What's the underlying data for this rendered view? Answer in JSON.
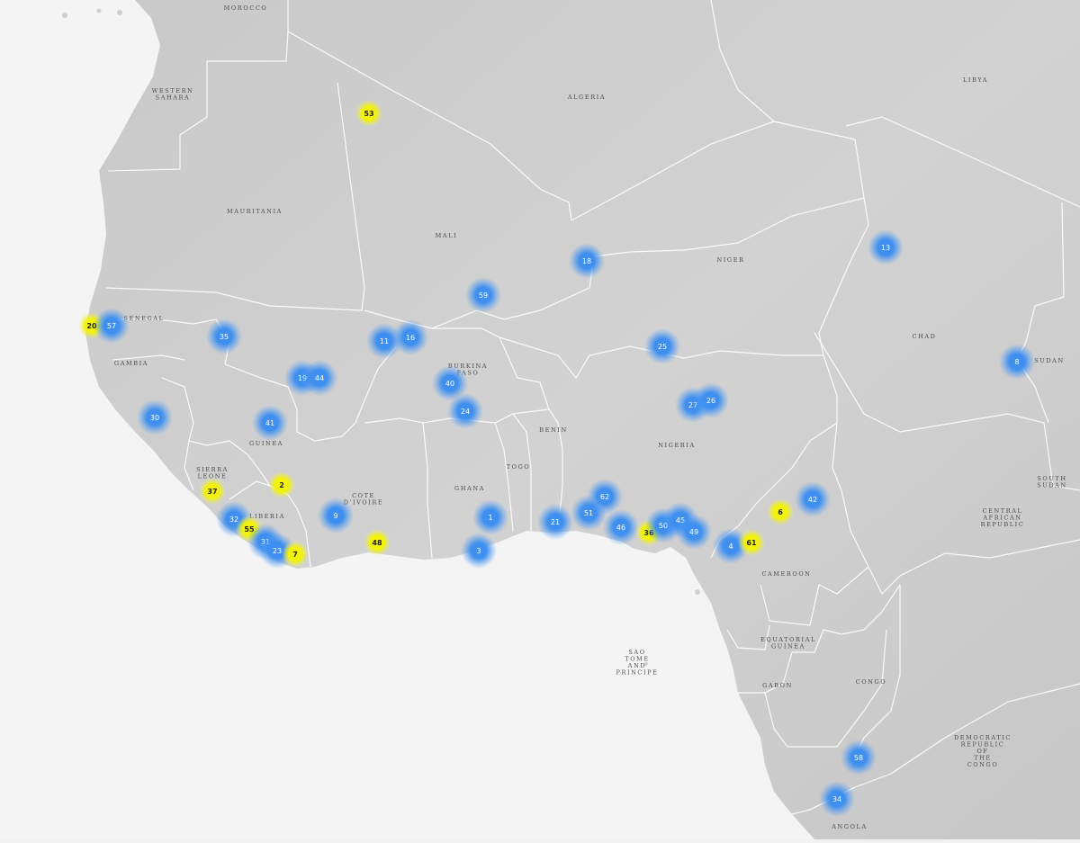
{
  "map": {
    "colors": {
      "ocean": "#f4f4f4",
      "land": "#cfcfcf",
      "border": "#ffffff",
      "blue_marker": "#3f8ff0",
      "yellow_marker": "#f2f20a"
    },
    "country_labels": [
      {
        "id": "morocco",
        "lines": [
          "MOROCCO"
        ]
      },
      {
        "id": "western-sahara",
        "lines": [
          "WESTERN",
          "SAHARA"
        ]
      },
      {
        "id": "algeria",
        "lines": [
          "ALGERIA"
        ]
      },
      {
        "id": "libya",
        "lines": [
          "LIBYA"
        ]
      },
      {
        "id": "mauritania",
        "lines": [
          "MAURITANIA"
        ]
      },
      {
        "id": "mali",
        "lines": [
          "MALI"
        ]
      },
      {
        "id": "niger",
        "lines": [
          "NIGER"
        ]
      },
      {
        "id": "chad",
        "lines": [
          "CHAD"
        ]
      },
      {
        "id": "sudan",
        "lines": [
          "SUDAN"
        ]
      },
      {
        "id": "senegal",
        "lines": [
          "SENEGAL"
        ]
      },
      {
        "id": "gambia",
        "lines": [
          "GAMBIA"
        ]
      },
      {
        "id": "burkina-faso",
        "lines": [
          "BURKINA",
          "FASO"
        ]
      },
      {
        "id": "guinea",
        "lines": [
          "GUINEA"
        ]
      },
      {
        "id": "benin",
        "lines": [
          "BENIN"
        ]
      },
      {
        "id": "nigeria",
        "lines": [
          "NIGERIA"
        ]
      },
      {
        "id": "south-sudan",
        "lines": [
          "SOUTH",
          "SUDAN"
        ]
      },
      {
        "id": "sierra-leone",
        "lines": [
          "SIERRA",
          "LEONE"
        ]
      },
      {
        "id": "cote-divoire",
        "lines": [
          "COTE",
          "D'IVOIRE"
        ]
      },
      {
        "id": "ghana",
        "lines": [
          "GHANA"
        ]
      },
      {
        "id": "togo",
        "lines": [
          "TOGO"
        ]
      },
      {
        "id": "liberia",
        "lines": [
          "LIBERIA"
        ]
      },
      {
        "id": "central-african-republic",
        "lines": [
          "CENTRAL",
          "AFRICAN",
          "REPUBLIC"
        ]
      },
      {
        "id": "cameroon",
        "lines": [
          "CAMEROON"
        ]
      },
      {
        "id": "equatorial-guinea",
        "lines": [
          "EQUATORIAL",
          "GUINEA"
        ]
      },
      {
        "id": "sao-tome",
        "lines": [
          "SAO",
          "TOME",
          "AND",
          "PRINCIPE"
        ]
      },
      {
        "id": "gabon",
        "lines": [
          "GABON"
        ]
      },
      {
        "id": "congo",
        "lines": [
          "CONGO"
        ]
      },
      {
        "id": "drc",
        "lines": [
          "DEMOCRATIC",
          "REPUBLIC",
          "OF",
          "THE",
          "CONGO"
        ]
      },
      {
        "id": "angola",
        "lines": [
          "ANGOLA"
        ]
      }
    ],
    "markers": [
      {
        "label": "53",
        "type": "yellow"
      },
      {
        "label": "18",
        "type": "blue"
      },
      {
        "label": "13",
        "type": "blue"
      },
      {
        "label": "59",
        "type": "blue"
      },
      {
        "label": "20",
        "type": "yellow"
      },
      {
        "label": "57",
        "type": "blue"
      },
      {
        "label": "35",
        "type": "blue"
      },
      {
        "label": "11",
        "type": "blue"
      },
      {
        "label": "16",
        "type": "blue"
      },
      {
        "label": "25",
        "type": "blue"
      },
      {
        "label": "8",
        "type": "blue"
      },
      {
        "label": "19",
        "type": "blue"
      },
      {
        "label": "44",
        "type": "blue"
      },
      {
        "label": "40",
        "type": "blue"
      },
      {
        "label": "27",
        "type": "blue"
      },
      {
        "label": "26",
        "type": "blue"
      },
      {
        "label": "30",
        "type": "blue"
      },
      {
        "label": "41",
        "type": "blue"
      },
      {
        "label": "24",
        "type": "blue"
      },
      {
        "label": "37",
        "type": "yellow"
      },
      {
        "label": "2",
        "type": "yellow"
      },
      {
        "label": "62",
        "type": "blue"
      },
      {
        "label": "42",
        "type": "blue"
      },
      {
        "label": "6",
        "type": "yellow"
      },
      {
        "label": "9",
        "type": "blue"
      },
      {
        "label": "1",
        "type": "blue"
      },
      {
        "label": "21",
        "type": "blue"
      },
      {
        "label": "51",
        "type": "blue"
      },
      {
        "label": "46",
        "type": "blue"
      },
      {
        "label": "36",
        "type": "yellow"
      },
      {
        "label": "50",
        "type": "blue"
      },
      {
        "label": "45",
        "type": "blue"
      },
      {
        "label": "49",
        "type": "blue"
      },
      {
        "label": "32",
        "type": "blue"
      },
      {
        "label": "55",
        "type": "yellow"
      },
      {
        "label": "31",
        "type": "blue"
      },
      {
        "label": "23",
        "type": "blue"
      },
      {
        "label": "7",
        "type": "yellow"
      },
      {
        "label": "48",
        "type": "yellow"
      },
      {
        "label": "3",
        "type": "blue"
      },
      {
        "label": "4",
        "type": "blue"
      },
      {
        "label": "61",
        "type": "yellow"
      },
      {
        "label": "58",
        "type": "blue"
      },
      {
        "label": "34",
        "type": "blue"
      }
    ]
  }
}
